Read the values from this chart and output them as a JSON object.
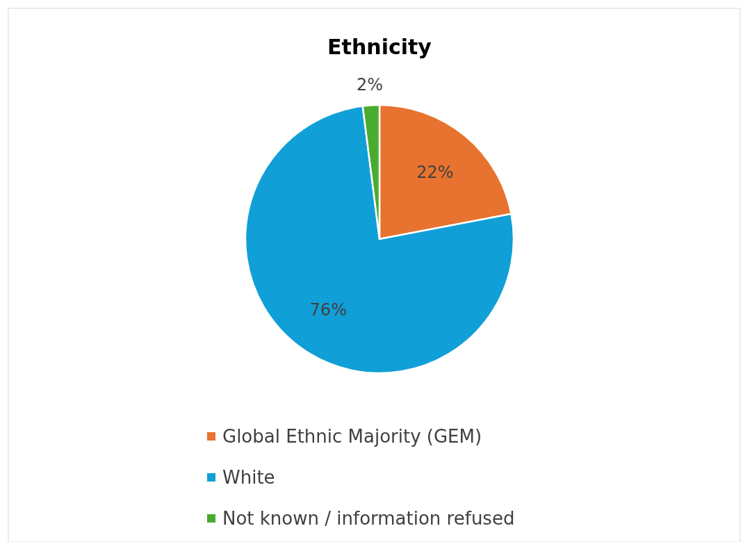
{
  "chart_data": {
    "type": "pie",
    "title": "Ethnicity",
    "categories": [
      "Global Ethnic Majority (GEM)",
      "White",
      "Not known / information refused"
    ],
    "values": [
      22,
      76,
      2
    ],
    "colors": [
      "#e8722f",
      "#119fd7",
      "#4aab30"
    ],
    "value_labels": [
      "22%",
      "76%",
      "2%"
    ],
    "legend": "bottom"
  }
}
